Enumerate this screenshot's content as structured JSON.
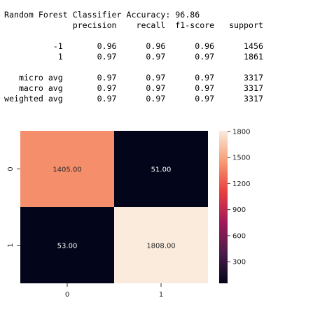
{
  "report": {
    "lines": [
      "Random Forest Classifier Accuracy: 96.86",
      "              precision    recall  f1-score   support",
      "",
      "          -1       0.96      0.96      0.96      1456",
      "           1       0.97      0.97      0.97      1861",
      "",
      "   micro avg       0.97      0.97      0.97      3317",
      "   macro avg       0.97      0.97      0.97      3317",
      "weighted avg       0.97      0.97      0.97      3317"
    ]
  },
  "chart_data": {
    "type": "heatmap",
    "x_categories": [
      "0",
      "1"
    ],
    "y_categories": [
      "0",
      "1"
    ],
    "values": [
      [
        1405.0,
        51.0
      ],
      [
        53.0,
        1808.0
      ]
    ],
    "annotations": [
      [
        "1405.00",
        "51.00"
      ],
      [
        "53.00",
        "1808.00"
      ]
    ],
    "colorbar": {
      "min": 51,
      "max": 1808,
      "ticks": [
        "300",
        "600",
        "900",
        "1200",
        "1500",
        "1800"
      ]
    },
    "colormap_stops": [
      "#03051a",
      "#4c1d4b",
      "#a11a5b",
      "#e83f3f",
      "#f69c73",
      "#faebdd"
    ]
  }
}
